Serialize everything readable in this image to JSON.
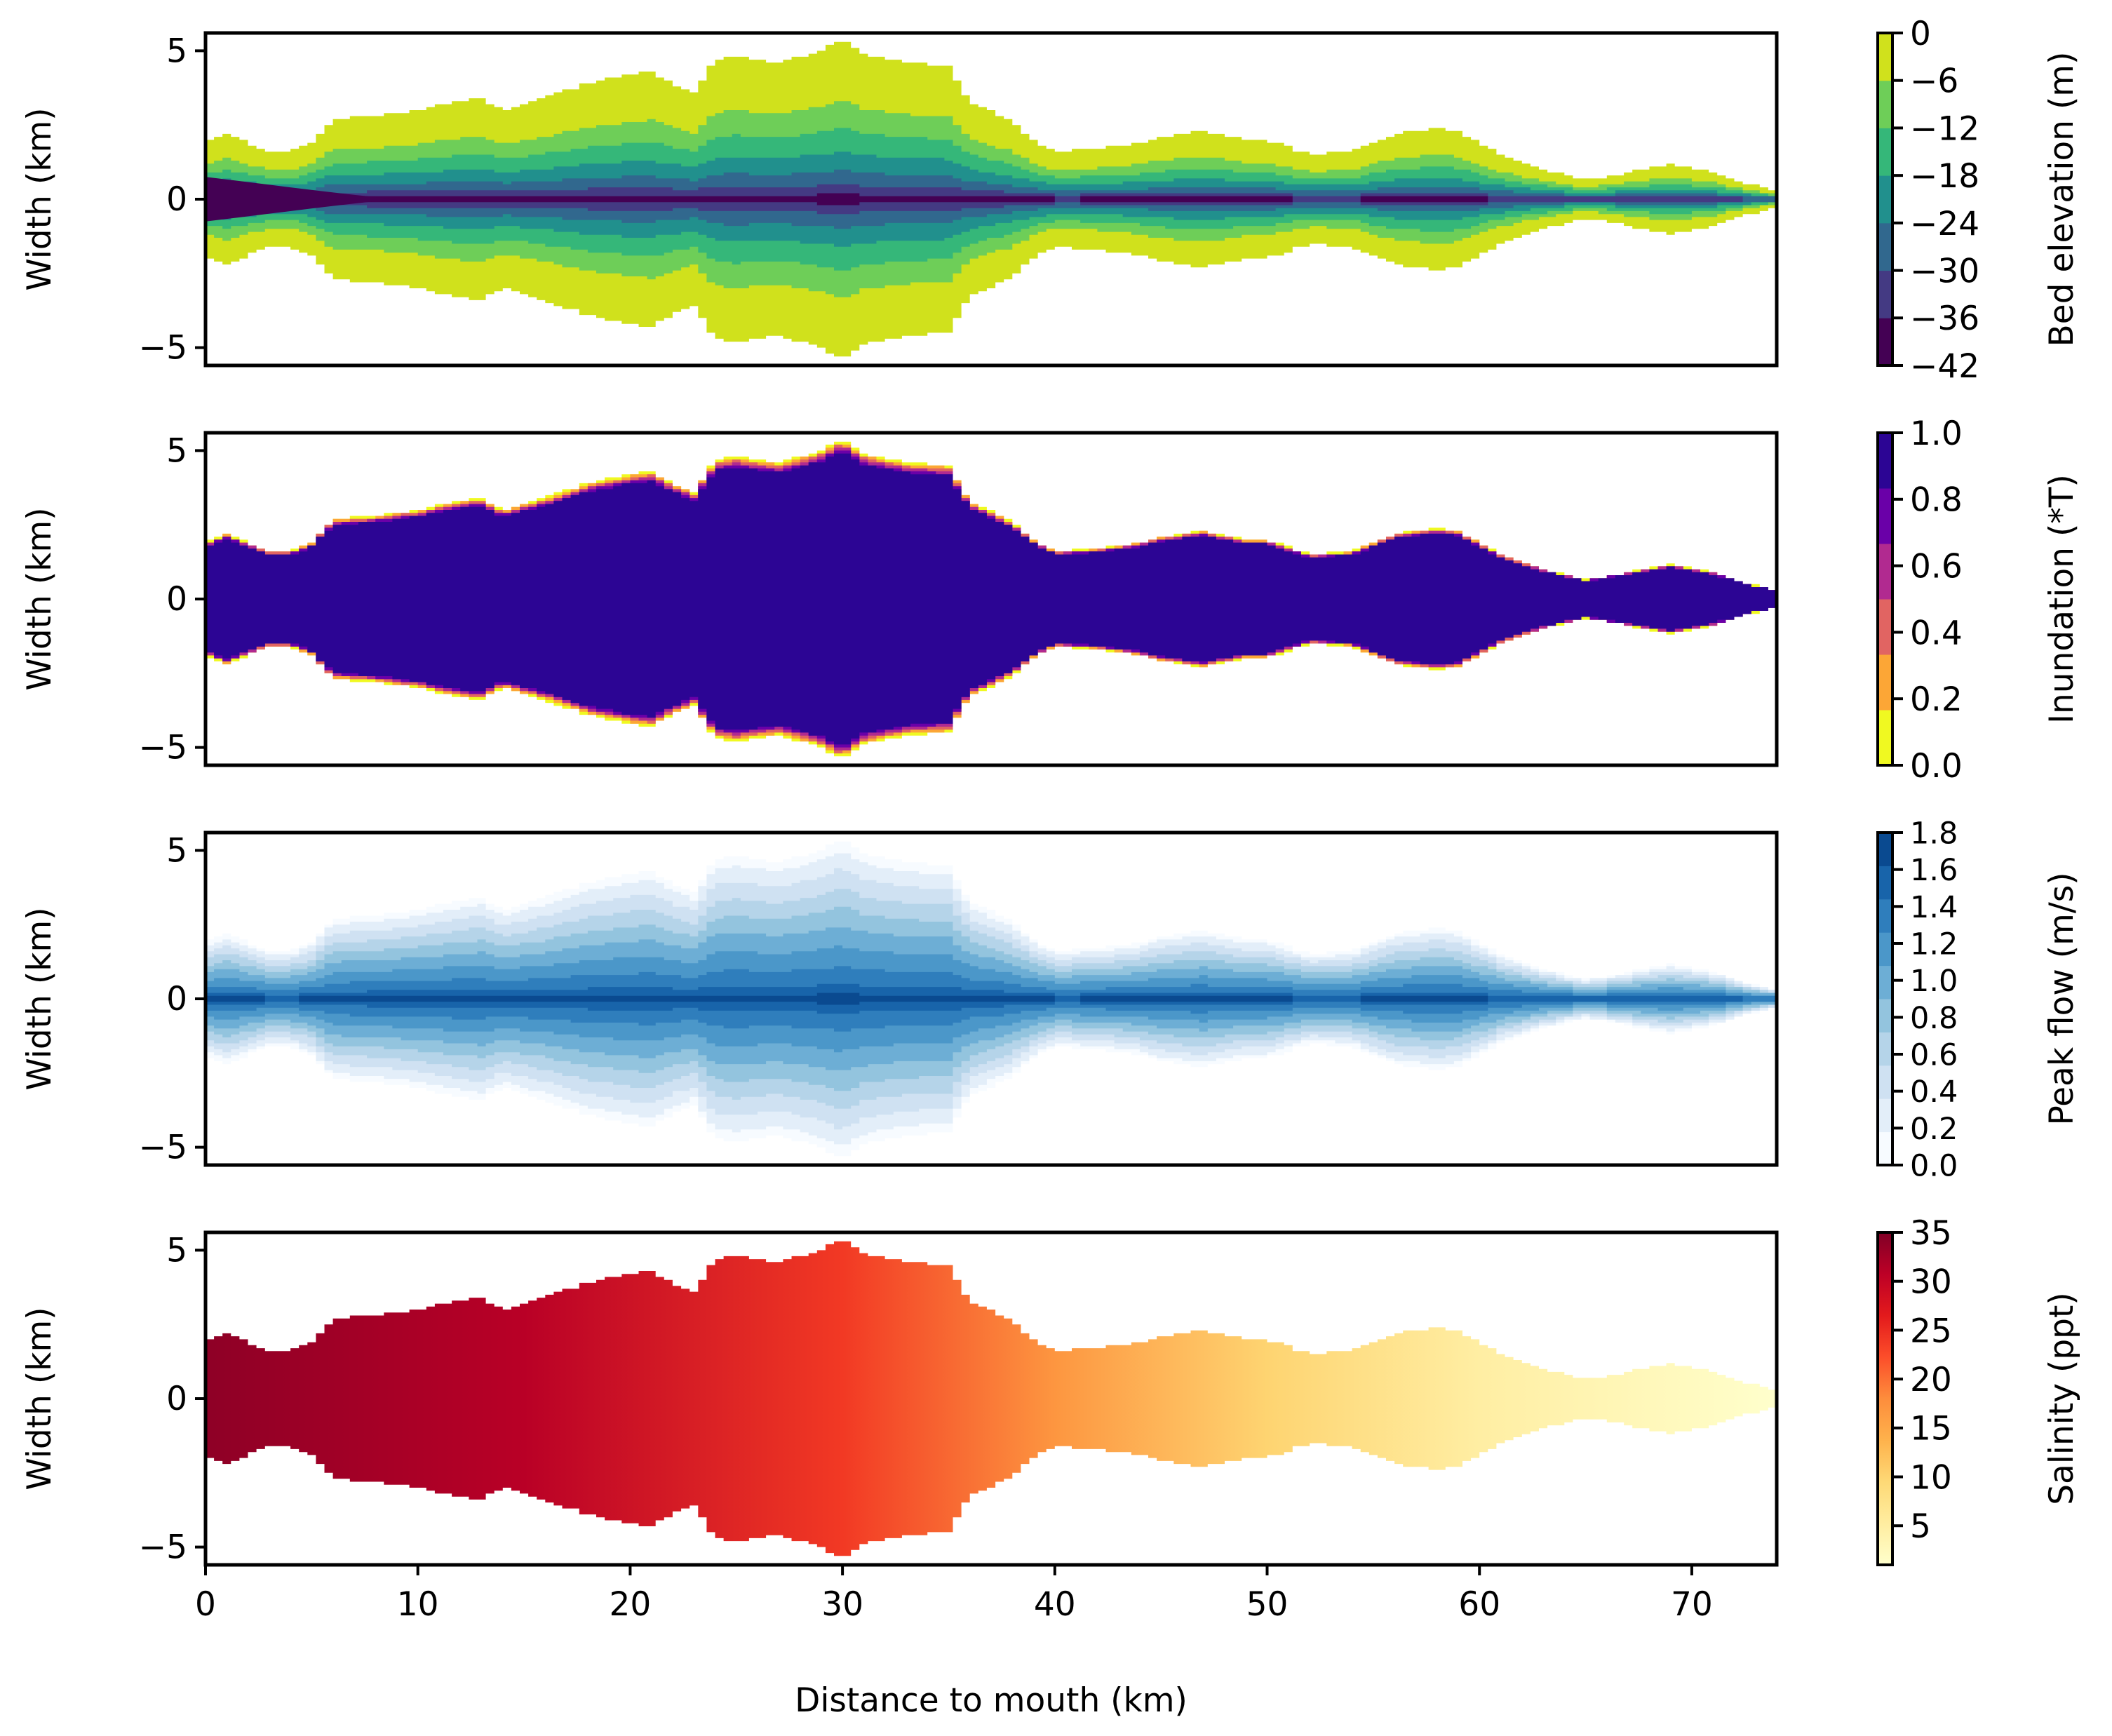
{
  "chart_data": {
    "type": "heatmap",
    "description_note": "Four stacked estuary maps sharing x axis",
    "xlabel": "Distance to mouth (km)",
    "xlim": [
      0,
      74
    ],
    "xticks": [
      0,
      10,
      20,
      30,
      40,
      50,
      60,
      70
    ],
    "ylim": [
      -5.6,
      5.6
    ],
    "yticks": [
      5,
      0,
      -5
    ],
    "ylabel": "Width (km)",
    "outline": {
      "x": [
        0,
        1,
        2,
        3,
        4,
        5,
        6,
        8,
        10,
        12,
        13,
        14,
        16,
        18,
        20,
        21,
        22,
        23,
        24,
        25,
        27,
        29,
        30,
        31,
        33,
        35,
        36,
        38,
        39,
        40,
        42,
        44,
        45,
        47,
        49,
        50,
        52,
        54,
        56,
        58,
        59,
        61,
        63,
        65,
        67,
        69,
        71,
        73,
        74
      ],
      "half_width": [
        1.9,
        2.2,
        1.9,
        1.6,
        1.6,
        1.9,
        2.7,
        2.8,
        3.0,
        3.3,
        3.4,
        3.0,
        3.4,
        3.9,
        4.2,
        4.3,
        3.9,
        3.6,
        4.7,
        4.8,
        4.6,
        5.0,
        5.4,
        4.9,
        4.6,
        4.5,
        3.3,
        2.6,
        2.0,
        1.6,
        1.7,
        1.9,
        2.1,
        2.3,
        2.0,
        2.0,
        1.5,
        1.6,
        2.2,
        2.4,
        2.3,
        1.5,
        1.0,
        0.65,
        0.9,
        1.15,
        0.9,
        0.45,
        0.3
      ]
    },
    "panels": [
      {
        "name": "bed-elevation",
        "colorbar_label": "Bed elevation (m)",
        "colorbar_ticks": [
          "0",
          "−6",
          "−12",
          "−18",
          "−24",
          "−30",
          "−36",
          "−42"
        ],
        "colorbar_tick_values": [
          0,
          -6,
          -12,
          -18,
          -24,
          -30,
          -36,
          -42
        ],
        "color_levels": [
          "#440154",
          "#443a83",
          "#31688e",
          "#21908d",
          "#35b779",
          "#6ece58",
          "#d0e11c"
        ],
        "deepest_thalweg_m": -42
      },
      {
        "name": "inundation",
        "colorbar_label": "Inundation (*T)",
        "colorbar_ticks": [
          "1.0",
          "0.8",
          "0.6",
          "0.4",
          "0.2",
          "0.0"
        ],
        "colorbar_tick_values": [
          1.0,
          0.8,
          0.6,
          0.4,
          0.2,
          0.0
        ],
        "color_levels": [
          "#f0f921",
          "#fca636",
          "#e16462",
          "#b12a90",
          "#6a00a8",
          "#2c0594"
        ],
        "interior_value": 1.0
      },
      {
        "name": "peak-flow",
        "colorbar_label": "Peak flow (m/s)",
        "colorbar_ticks": [
          "1.8",
          "1.6",
          "1.4",
          "1.2",
          "1.0",
          "0.8",
          "0.6",
          "0.4",
          "0.2",
          "0.0"
        ],
        "colorbar_tick_values": [
          1.8,
          1.6,
          1.4,
          1.2,
          1.0,
          0.8,
          0.6,
          0.4,
          0.2,
          0.0
        ],
        "color_levels": [
          "#f7fbff",
          "#e3eef9",
          "#cfe1f2",
          "#b5d4e9",
          "#93c4de",
          "#6daed5",
          "#4b97c9",
          "#2f7ebc",
          "#1864aa",
          "#0a4a90"
        ],
        "max_value": 1.8
      },
      {
        "name": "salinity",
        "colorbar_label": "Salinity (ppt)",
        "colorbar_ticks": [
          "35",
          "30",
          "25",
          "20",
          "15",
          "10",
          "5"
        ],
        "colorbar_tick_values": [
          35,
          30,
          25,
          20,
          15,
          10,
          5
        ],
        "colorbar_range": [
          1,
          35
        ],
        "gradient_stops": [
          {
            "km": 0,
            "value": 34
          },
          {
            "km": 15,
            "value": 31
          },
          {
            "km": 30,
            "value": 24
          },
          {
            "km": 40,
            "value": 17
          },
          {
            "km": 50,
            "value": 10
          },
          {
            "km": 60,
            "value": 5
          },
          {
            "km": 74,
            "value": 1
          }
        ],
        "colors": [
          "#ffffcc",
          "#ffeda0",
          "#fed976",
          "#feb24c",
          "#fd8d3c",
          "#fc4e2a",
          "#e31a1c",
          "#bd0026",
          "#800026"
        ]
      }
    ]
  }
}
